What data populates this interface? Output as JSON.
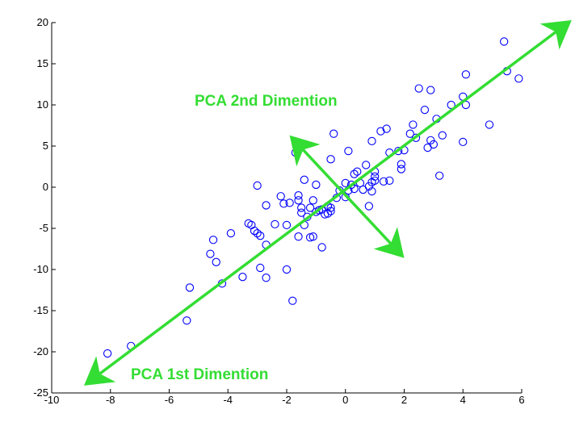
{
  "chart_data": {
    "type": "scatter",
    "title": "",
    "xlabel": "",
    "ylabel": "",
    "xlim": [
      -10,
      6
    ],
    "ylim": [
      -25,
      20
    ],
    "xticks": [
      -10,
      -8,
      -6,
      -4,
      -2,
      0,
      2,
      4,
      6
    ],
    "yticks": [
      -25,
      -20,
      -15,
      -10,
      -5,
      0,
      5,
      10,
      15,
      20
    ],
    "grid": false,
    "marker": "open-circle",
    "marker_color": "#0000ff",
    "points": [
      [
        -8.1,
        -20.2
      ],
      [
        -7.3,
        -19.3
      ],
      [
        -5.4,
        -16.2
      ],
      [
        -5.3,
        -12.2
      ],
      [
        -4.2,
        -11.7
      ],
      [
        -4.6,
        -8.1
      ],
      [
        -4.5,
        -6.4
      ],
      [
        -4.4,
        -9.1
      ],
      [
        -3.9,
        -5.6
      ],
      [
        -3.5,
        -10.9
      ],
      [
        -3.3,
        -4.4
      ],
      [
        -3.2,
        -4.6
      ],
      [
        -3.1,
        -5.3
      ],
      [
        -3.0,
        -5.6
      ],
      [
        -2.9,
        -5.9
      ],
      [
        -3.0,
        0.2
      ],
      [
        -2.9,
        -9.8
      ],
      [
        -2.7,
        -11.0
      ],
      [
        -2.7,
        -7.0
      ],
      [
        -2.7,
        -2.2
      ],
      [
        -2.4,
        -4.5
      ],
      [
        -2.2,
        -1.1
      ],
      [
        -2.1,
        -2.0
      ],
      [
        -2.0,
        -10.0
      ],
      [
        -2.0,
        -4.6
      ],
      [
        -1.9,
        -1.9
      ],
      [
        -1.8,
        -13.8
      ],
      [
        -1.7,
        4.2
      ],
      [
        -1.6,
        -1.0
      ],
      [
        -1.6,
        -1.6
      ],
      [
        -1.6,
        -6.0
      ],
      [
        -1.5,
        -3.1
      ],
      [
        -1.5,
        -2.5
      ],
      [
        -1.4,
        0.9
      ],
      [
        -1.4,
        -4.6
      ],
      [
        -1.3,
        -3.6
      ],
      [
        -1.2,
        -6.1
      ],
      [
        -1.2,
        -2.5
      ],
      [
        -1.1,
        -1.6
      ],
      [
        -1.1,
        -6.0
      ],
      [
        -1.0,
        0.3
      ],
      [
        -1.0,
        -3.0
      ],
      [
        -0.9,
        -2.8
      ],
      [
        -0.8,
        -7.3
      ],
      [
        -0.8,
        -2.7
      ],
      [
        -0.7,
        -3.3
      ],
      [
        -0.6,
        -2.3
      ],
      [
        -0.6,
        -3.2
      ],
      [
        -0.5,
        3.4
      ],
      [
        -0.5,
        -2.5
      ],
      [
        -0.5,
        -2.9
      ],
      [
        -0.4,
        6.5
      ],
      [
        -0.3,
        -1.3
      ],
      [
        -0.2,
        -0.4
      ],
      [
        0.0,
        -1.2
      ],
      [
        0.0,
        0.5
      ],
      [
        0.1,
        4.4
      ],
      [
        0.1,
        -0.4
      ],
      [
        0.2,
        0.3
      ],
      [
        0.3,
        1.6
      ],
      [
        0.3,
        -0.2
      ],
      [
        0.4,
        1.9
      ],
      [
        0.5,
        0.5
      ],
      [
        0.6,
        -0.3
      ],
      [
        0.7,
        2.7
      ],
      [
        0.8,
        0.1
      ],
      [
        0.8,
        -2.3
      ],
      [
        0.9,
        5.6
      ],
      [
        0.9,
        0.6
      ],
      [
        0.9,
        -0.5
      ],
      [
        1.0,
        1.3
      ],
      [
        1.0,
        0.8
      ],
      [
        1.0,
        1.9
      ],
      [
        1.2,
        6.8
      ],
      [
        1.3,
        0.7
      ],
      [
        1.4,
        7.1
      ],
      [
        1.5,
        0.8
      ],
      [
        1.5,
        4.2
      ],
      [
        1.8,
        4.4
      ],
      [
        1.9,
        2.8
      ],
      [
        1.9,
        2.2
      ],
      [
        2.0,
        4.5
      ],
      [
        2.2,
        6.5
      ],
      [
        2.3,
        7.6
      ],
      [
        2.4,
        6.0
      ],
      [
        2.5,
        12.0
      ],
      [
        2.7,
        9.4
      ],
      [
        2.8,
        4.8
      ],
      [
        2.9,
        11.8
      ],
      [
        2.9,
        5.7
      ],
      [
        3.0,
        5.2
      ],
      [
        3.1,
        8.3
      ],
      [
        3.2,
        1.4
      ],
      [
        3.3,
        6.3
      ],
      [
        3.6,
        10.0
      ],
      [
        4.0,
        11.0
      ],
      [
        4.0,
        5.5
      ],
      [
        4.1,
        10.0
      ],
      [
        4.1,
        13.7
      ],
      [
        4.9,
        7.6
      ],
      [
        5.4,
        17.7
      ],
      [
        5.5,
        14.1
      ],
      [
        5.9,
        13.2
      ]
    ],
    "annotations": [
      {
        "text": "PCA 2nd Dimention",
        "color": "#33dd33",
        "arrow": {
          "from": [
            -1.9,
            6.3
          ],
          "to": [
            2.0,
            -8.6
          ],
          "double_headed": true
        }
      },
      {
        "text": "PCA 1st Dimention",
        "color": "#33dd33",
        "arrow": {
          "from": [
            -8.9,
            -24.1
          ],
          "to": [
            7.7,
            20.3
          ],
          "double_headed": true
        }
      }
    ]
  }
}
